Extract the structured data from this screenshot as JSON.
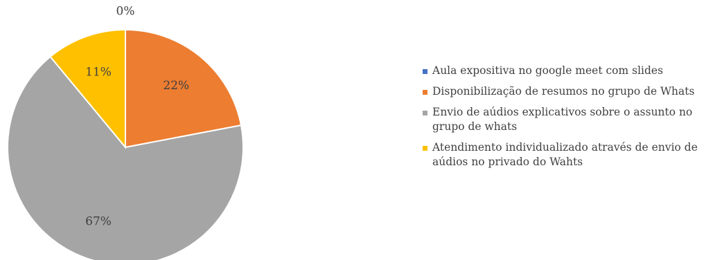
{
  "chart_data": {
    "type": "pie",
    "categories": [
      "Aula expositiva no google meet com slides",
      "Disponibilização de resumos no grupo de Whats",
      "Envio de aúdios explicativos sobre o assunto no grupo de whats",
      "Atendimento individualizado através de envio de aúdios no privado do Wahts"
    ],
    "values": [
      0,
      22,
      67,
      11
    ],
    "data_labels": [
      "0%",
      "22%",
      "67%",
      "11%"
    ],
    "colors": [
      "#4472C4",
      "#ED7D31",
      "#A5A5A5",
      "#FFC000"
    ],
    "legend": {
      "position": "right",
      "entries": [
        "Aula expositiva no google meet com slides",
        "Disponibilização de resumos no grupo de Whats",
        "Envio de aúdios explicativos sobre o assunto no grupo de whats",
        "Atendimento individualizado através de envio de aúdios no privado do Wahts"
      ]
    },
    "title": ""
  }
}
